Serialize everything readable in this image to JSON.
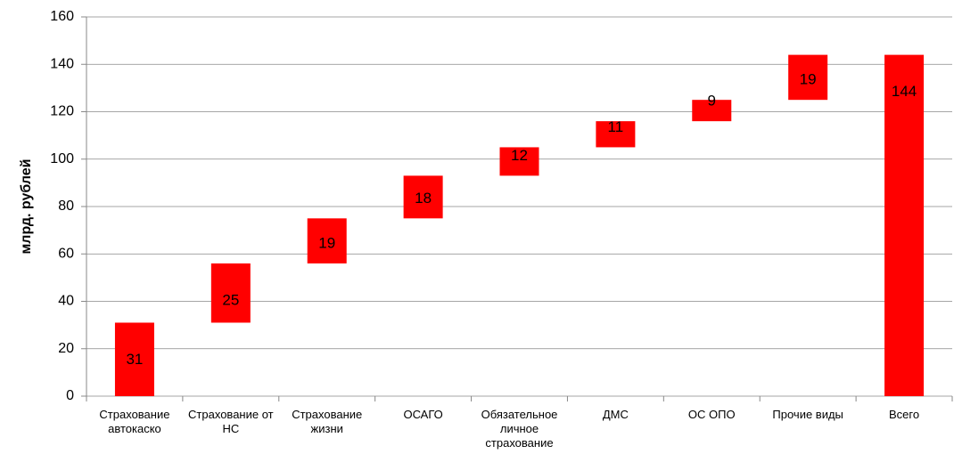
{
  "chart_data": {
    "type": "waterfall",
    "ylabel": "млрд. рублей",
    "categories": [
      "Страхование автокаско",
      "Страхование от НС",
      "Страхование жизни",
      "ОСАГО",
      "Обязательное личное страхование",
      "ДМС",
      "ОС ОПО",
      "Прочие виды",
      "Всего"
    ],
    "values": [
      31,
      25,
      19,
      18,
      12,
      11,
      9,
      19,
      144
    ],
    "color": "#ff0000",
    "ylim": [
      0,
      160
    ],
    "yticks": [
      0,
      20,
      40,
      60,
      80,
      100,
      120,
      140,
      160
    ],
    "grid": true
  }
}
